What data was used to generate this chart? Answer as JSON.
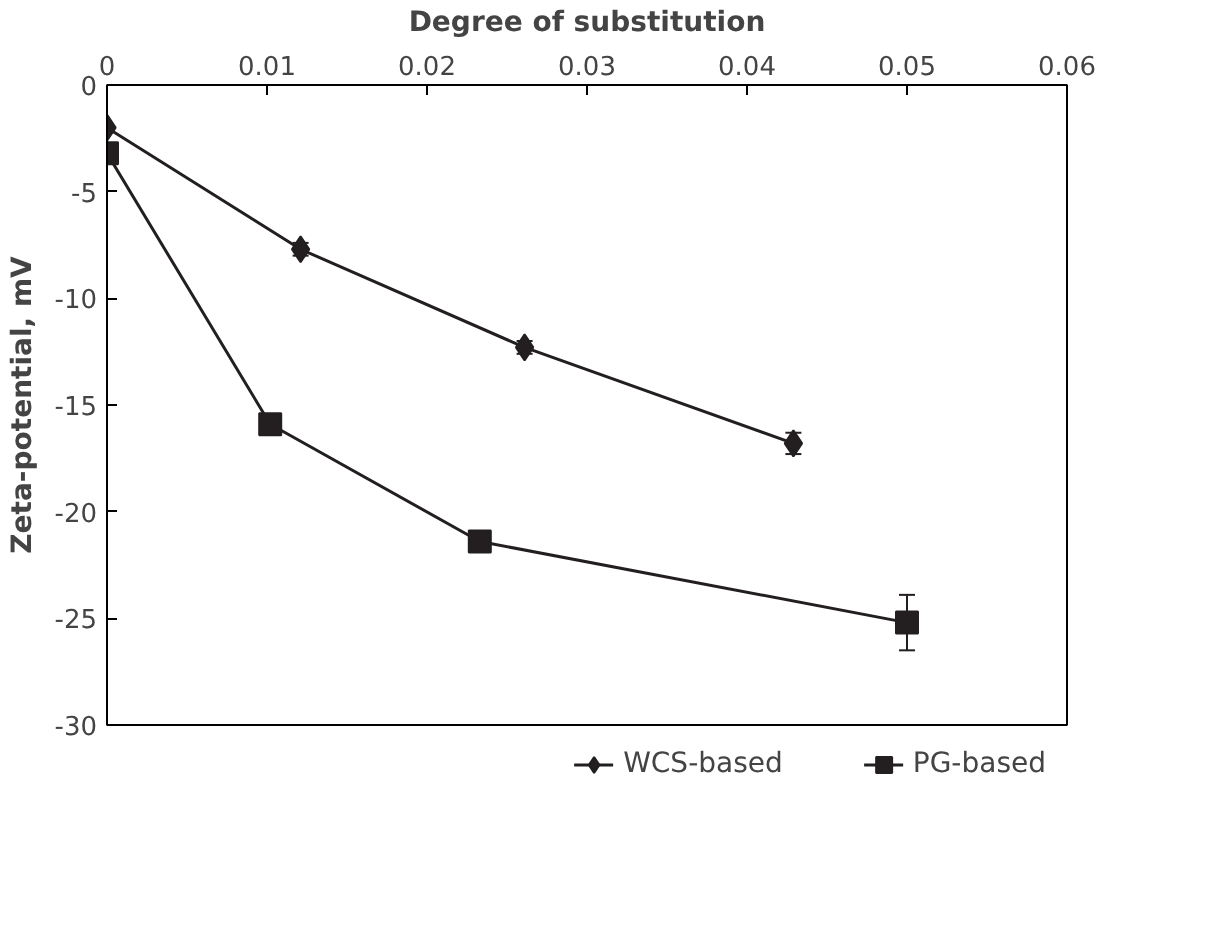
{
  "chart_data": {
    "type": "line",
    "xlabel": "Degree of substitution",
    "ylabel": "Zeta-potential, mV",
    "xlim": [
      0,
      0.06
    ],
    "xticks": [
      0,
      0.01,
      0.02,
      0.03,
      0.04,
      0.05,
      0.06
    ],
    "ylim": [
      -30,
      0
    ],
    "yticks": [
      -30,
      -25,
      -20,
      -15,
      -10,
      -5,
      0
    ],
    "grid": false,
    "legend": "bottom",
    "line_style": "solid",
    "series": [
      {
        "name": "WCS-based",
        "color": "#231f20",
        "marker": "diamond",
        "x": [
          0,
          0.0121,
          0.0261,
          0.0429
        ],
        "values": [
          -2,
          -7.7,
          -12.3,
          -16.8
        ],
        "errors": [
          null,
          0.3,
          0.3,
          0.5
        ]
      },
      {
        "name": "PG-based",
        "color": "#231f20",
        "marker": "square",
        "x": [
          0,
          0.0102,
          0.0233,
          0.05
        ],
        "values": [
          -3.2,
          -15.9,
          -21.4,
          -25.2
        ],
        "errors": [
          null,
          0.3,
          0.3,
          1.3
        ]
      }
    ]
  }
}
